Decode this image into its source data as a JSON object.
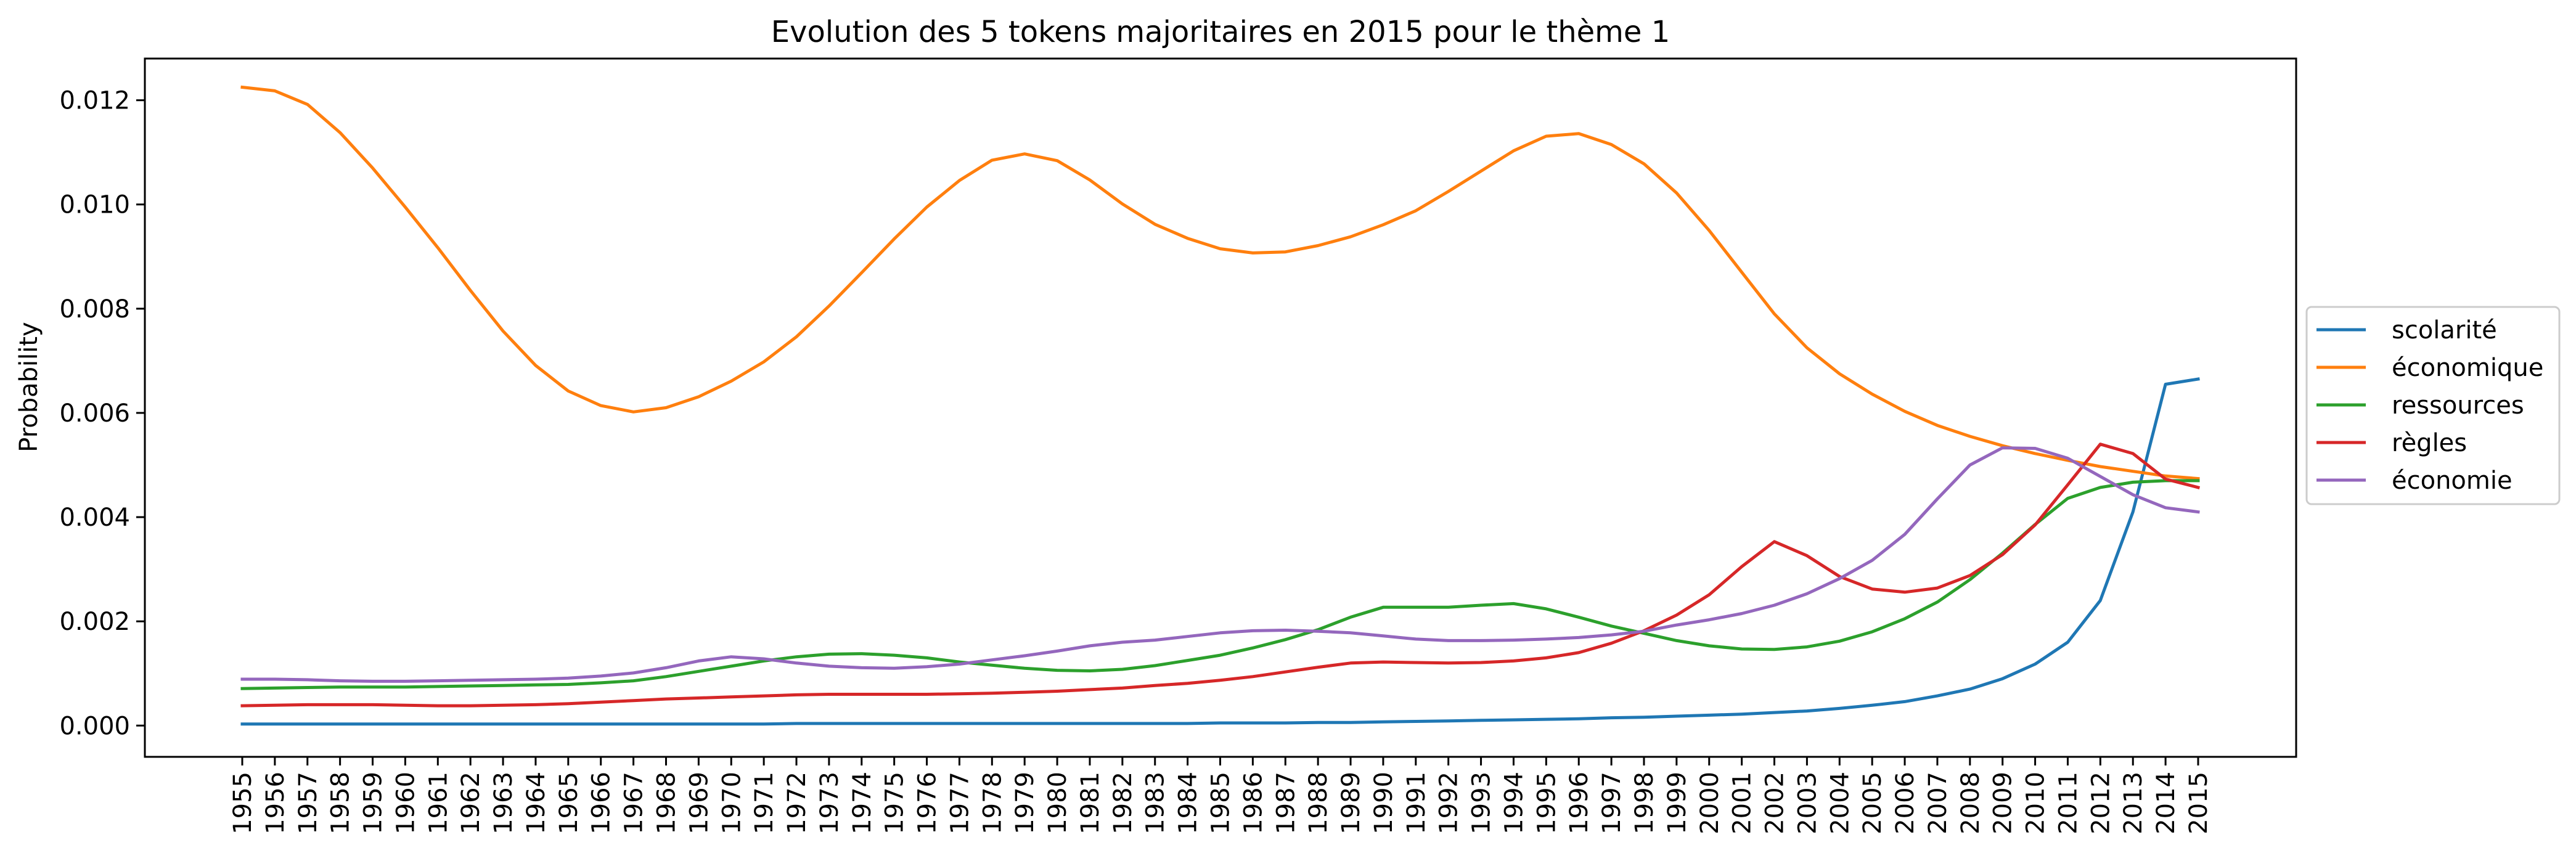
{
  "chart_data": {
    "type": "line",
    "title": "Evolution des 5 tokens majoritaires en 2015 pour le thème 1",
    "xlabel": "",
    "ylabel": "Probability",
    "ylim": [
      -0.0006,
      0.0128
    ],
    "yticks": [
      "0.000",
      "0.002",
      "0.004",
      "0.006",
      "0.008",
      "0.010",
      "0.012"
    ],
    "ytick_values": [
      0,
      0.002,
      0.004,
      0.006,
      0.008,
      0.01,
      0.012
    ],
    "grid": false,
    "legend_position": "right-outside",
    "x": [
      "1955",
      "1956",
      "1957",
      "1958",
      "1959",
      "1960",
      "1961",
      "1962",
      "1963",
      "1964",
      "1965",
      "1966",
      "1967",
      "1968",
      "1969",
      "1970",
      "1971",
      "1972",
      "1973",
      "1974",
      "1975",
      "1976",
      "1977",
      "1978",
      "1979",
      "1980",
      "1981",
      "1982",
      "1983",
      "1984",
      "1985",
      "1986",
      "1987",
      "1988",
      "1989",
      "1990",
      "1991",
      "1992",
      "1993",
      "1994",
      "1995",
      "1996",
      "1997",
      "1998",
      "1999",
      "2000",
      "2001",
      "2002",
      "2003",
      "2004",
      "2005",
      "2006",
      "2007",
      "2008",
      "2009",
      "2010",
      "2011",
      "2012",
      "2013",
      "2014",
      "2015"
    ],
    "series": [
      {
        "name": "scolarité",
        "color": "#1f77b4",
        "values": [
          3e-05,
          3e-05,
          3e-05,
          3e-05,
          3e-05,
          3e-05,
          3e-05,
          3e-05,
          3e-05,
          3e-05,
          3e-05,
          3e-05,
          3e-05,
          3e-05,
          3e-05,
          3e-05,
          3e-05,
          4e-05,
          4e-05,
          4e-05,
          4e-05,
          4e-05,
          4e-05,
          4e-05,
          4e-05,
          4e-05,
          4e-05,
          4e-05,
          4e-05,
          4e-05,
          5e-05,
          5e-05,
          5e-05,
          6e-05,
          6e-05,
          7e-05,
          8e-05,
          9e-05,
          0.0001,
          0.00011,
          0.00012,
          0.00013,
          0.00015,
          0.00016,
          0.00018,
          0.0002,
          0.00022,
          0.00025,
          0.00028,
          0.00033,
          0.00039,
          0.00046,
          0.00057,
          0.0007,
          0.0009,
          0.00118,
          0.0016,
          0.0024,
          0.0041,
          0.00655,
          0.00665
        ]
      },
      {
        "name": "économique",
        "color": "#ff7f0e",
        "values": [
          0.01225,
          0.01218,
          0.01192,
          0.01138,
          0.0107,
          0.00995,
          0.00917,
          0.00835,
          0.00757,
          0.00691,
          0.00642,
          0.00614,
          0.00602,
          0.0061,
          0.00631,
          0.00661,
          0.00698,
          0.00746,
          0.00805,
          0.00869,
          0.00934,
          0.00995,
          0.01046,
          0.01085,
          0.01097,
          0.01084,
          0.01047,
          0.01001,
          0.00962,
          0.00935,
          0.00915,
          0.00907,
          0.00909,
          0.00921,
          0.00938,
          0.00961,
          0.00988,
          0.01025,
          0.01064,
          0.01103,
          0.01131,
          0.01136,
          0.01115,
          0.01078,
          0.01022,
          0.0095,
          0.0087,
          0.0079,
          0.00725,
          0.00675,
          0.00636,
          0.00603,
          0.00576,
          0.00555,
          0.00537,
          0.00522,
          0.00509,
          0.00497,
          0.00488,
          0.00479,
          0.00474
        ]
      },
      {
        "name": "ressources",
        "color": "#2ca02c",
        "values": [
          0.00071,
          0.00072,
          0.00073,
          0.00074,
          0.00074,
          0.00074,
          0.00075,
          0.00076,
          0.00077,
          0.00078,
          0.00079,
          0.00082,
          0.00086,
          0.00094,
          0.00104,
          0.00114,
          0.00124,
          0.00132,
          0.00137,
          0.00138,
          0.00135,
          0.0013,
          0.00122,
          0.00116,
          0.0011,
          0.00106,
          0.00105,
          0.00108,
          0.00115,
          0.00125,
          0.00135,
          0.00149,
          0.00165,
          0.00184,
          0.00208,
          0.00227,
          0.00227,
          0.00227,
          0.00231,
          0.00234,
          0.00224,
          0.00208,
          0.00191,
          0.00177,
          0.00163,
          0.00153,
          0.00147,
          0.00146,
          0.00151,
          0.00162,
          0.0018,
          0.00205,
          0.00237,
          0.0028,
          0.00331,
          0.00386,
          0.00436,
          0.00457,
          0.00467,
          0.0047,
          0.0047
        ]
      },
      {
        "name": "règles",
        "color": "#d62728",
        "values": [
          0.00038,
          0.00039,
          0.0004,
          0.0004,
          0.0004,
          0.00039,
          0.00038,
          0.00038,
          0.00039,
          0.0004,
          0.00042,
          0.00045,
          0.00048,
          0.00051,
          0.00053,
          0.00055,
          0.00057,
          0.00059,
          0.0006,
          0.0006,
          0.0006,
          0.0006,
          0.00061,
          0.00062,
          0.00064,
          0.00066,
          0.00069,
          0.00072,
          0.00077,
          0.00081,
          0.00087,
          0.00094,
          0.00103,
          0.00112,
          0.0012,
          0.00122,
          0.00121,
          0.0012,
          0.00121,
          0.00124,
          0.0013,
          0.0014,
          0.00158,
          0.00182,
          0.00212,
          0.00251,
          0.00305,
          0.00353,
          0.00326,
          0.00286,
          0.00262,
          0.00256,
          0.00264,
          0.00288,
          0.00328,
          0.00385,
          0.00462,
          0.0054,
          0.00522,
          0.00473,
          0.00457
        ]
      },
      {
        "name": "économie",
        "color": "#9467bd",
        "values": [
          0.00089,
          0.00089,
          0.00088,
          0.00086,
          0.00085,
          0.00085,
          0.00086,
          0.00087,
          0.00088,
          0.00089,
          0.00091,
          0.00095,
          0.00101,
          0.00111,
          0.00124,
          0.00132,
          0.00128,
          0.0012,
          0.00114,
          0.00111,
          0.0011,
          0.00113,
          0.00118,
          0.00126,
          0.00134,
          0.00143,
          0.00153,
          0.0016,
          0.00164,
          0.00171,
          0.00178,
          0.00182,
          0.00183,
          0.00181,
          0.00178,
          0.00172,
          0.00166,
          0.00163,
          0.00163,
          0.00164,
          0.00166,
          0.00169,
          0.00174,
          0.00181,
          0.00193,
          0.00203,
          0.00215,
          0.00231,
          0.00253,
          0.00282,
          0.00317,
          0.00367,
          0.00435,
          0.005,
          0.00533,
          0.00532,
          0.00513,
          0.00478,
          0.00443,
          0.00418,
          0.0041
        ]
      }
    ]
  }
}
